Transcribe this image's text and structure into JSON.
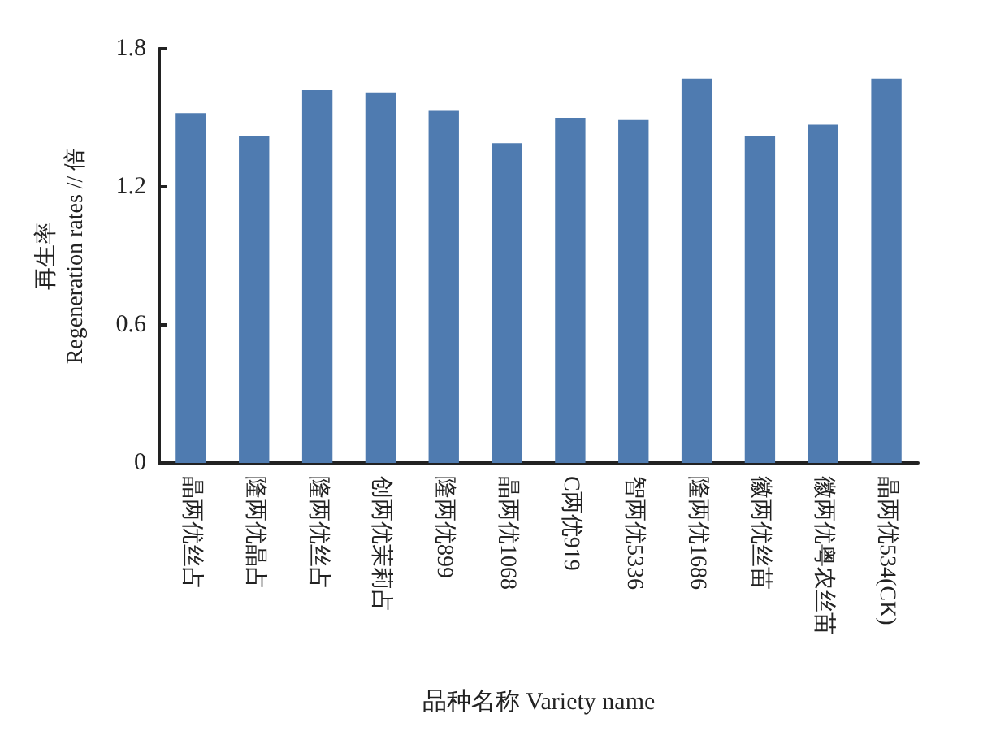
{
  "chart_data": {
    "type": "bar",
    "xlabel": "品种名称 Variety name",
    "ylabel": "再生率\nRegeneration rates // 倍",
    "categories": [
      "晶两优丝占",
      "隆两优晶占",
      "隆两优丝占",
      "创两优茉莉占",
      "隆两优899",
      "晶两优1068",
      "C两优919",
      "智两优5336",
      "隆两优1686",
      "徽两优丝苗",
      "徽两优粤农丝苗",
      "晶两优534(CK)"
    ],
    "values": [
      1.52,
      1.42,
      1.62,
      1.61,
      1.53,
      1.39,
      1.5,
      1.49,
      1.67,
      1.42,
      1.47,
      1.67
    ],
    "color": "#4f7bb0",
    "ylim": [
      0,
      1.8
    ],
    "yticks": [
      0,
      0.6,
      1.2,
      1.8
    ],
    "grid": false
  }
}
